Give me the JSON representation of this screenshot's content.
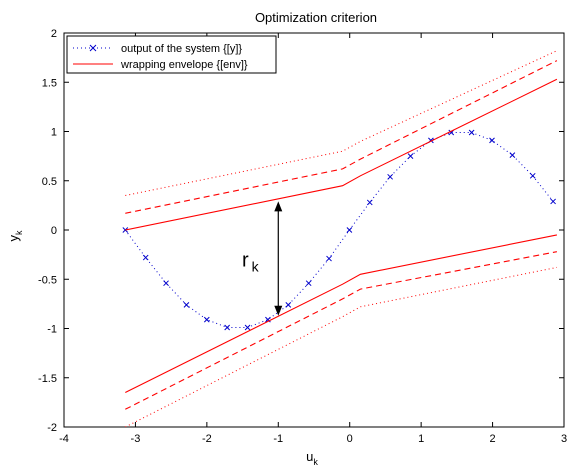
{
  "chart_data": {
    "type": "line",
    "title": "Optimization criterion",
    "xlabel_main": "u",
    "xlabel_sub": "k",
    "ylabel_main": "y",
    "ylabel_sub": "k",
    "xlim": [
      -4,
      3
    ],
    "ylim": [
      -2,
      2
    ],
    "xticks": [
      -4,
      -3,
      -2,
      -1,
      0,
      1,
      2,
      3
    ],
    "yticks": [
      -2,
      -1.5,
      -1,
      -0.5,
      0,
      0.5,
      1,
      1.5,
      2
    ],
    "grid": false,
    "legend_position": "top-left",
    "annotation": {
      "main": "r",
      "sub": "k",
      "arrow_x": -1.0,
      "arrow_y_from": 0.29,
      "arrow_y_to": -0.87
    },
    "colors": {
      "output": "#0000cc",
      "envelope": "#ff0000",
      "axes": "#000000"
    },
    "series": [
      {
        "name": "output of the system {[y]}",
        "style": "dotted-with-x-markers",
        "x": [
          -3.1416,
          -2.8564,
          -2.5712,
          -2.286,
          -2.0008,
          -1.7156,
          -1.4304,
          -1.1452,
          -0.86,
          -0.5748,
          -0.2896,
          -0.0044,
          0.2808,
          0.566,
          0.8512,
          1.1364,
          1.4216,
          1.7068,
          1.992,
          2.2772,
          2.5624,
          2.8476
        ],
        "y": [
          0.0,
          -0.28,
          -0.54,
          -0.76,
          -0.91,
          -0.99,
          -0.99,
          -0.91,
          -0.76,
          -0.54,
          -0.29,
          0.0,
          0.28,
          0.54,
          0.75,
          0.91,
          0.99,
          0.99,
          0.91,
          0.76,
          0.55,
          0.29
        ]
      },
      {
        "name": "wrapping envelope {[env]}",
        "style": "solid",
        "segments": [
          {
            "x": [
              -3.1416,
              -0.1,
              0.15,
              2.9
            ],
            "y": [
              0.0,
              0.45,
              0.55,
              1.53
            ]
          },
          {
            "x": [
              -3.1416,
              -0.1,
              0.15,
              2.9
            ],
            "y": [
              -1.65,
              -0.55,
              -0.45,
              -0.05
            ]
          }
        ]
      },
      {
        "name": "",
        "style": "dashed",
        "segments": [
          {
            "x": [
              -3.1416,
              -0.1,
              0.15,
              2.9
            ],
            "y": [
              0.17,
              0.62,
              0.72,
              1.72
            ]
          },
          {
            "x": [
              -3.1416,
              -0.1,
              0.15,
              2.9
            ],
            "y": [
              -1.82,
              -0.7,
              -0.6,
              -0.22
            ]
          }
        ]
      },
      {
        "name": "",
        "style": "dotted",
        "segments": [
          {
            "x": [
              -3.1416,
              -0.1,
              0.15,
              2.9
            ],
            "y": [
              0.35,
              0.8,
              0.9,
              1.82
            ]
          },
          {
            "x": [
              -3.1416,
              -0.1,
              0.15,
              2.9
            ],
            "y": [
              -2.0,
              -0.88,
              -0.78,
              -0.38
            ]
          }
        ]
      }
    ]
  }
}
